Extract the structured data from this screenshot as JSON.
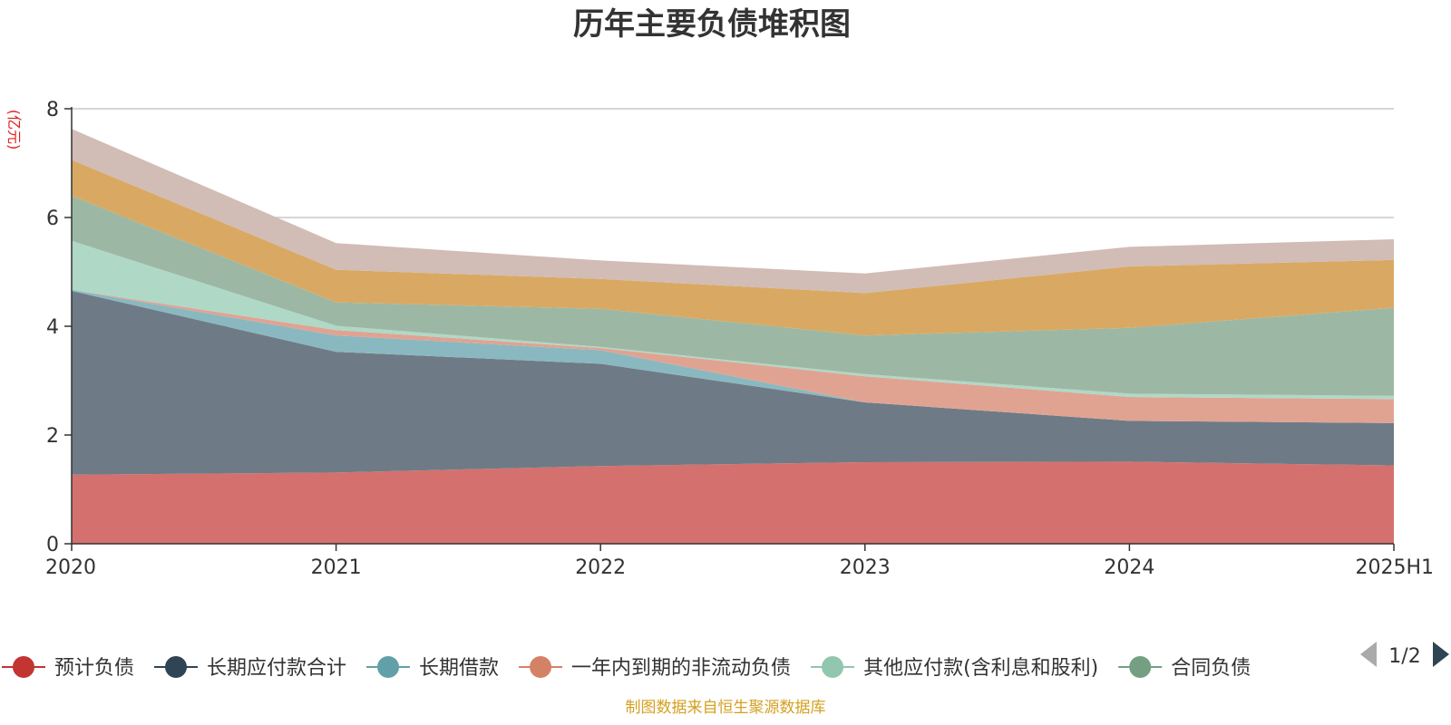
{
  "chart_data": {
    "type": "area",
    "title": "历年主要负债堆积图",
    "ylabel": "(亿元)",
    "ylim": [
      0,
      8
    ],
    "yticks": [
      0,
      2,
      4,
      6,
      8
    ],
    "categories": [
      "2020",
      "2021",
      "2022",
      "2023",
      "2024",
      "2025H1"
    ],
    "grid": true,
    "legend_position": "bottom",
    "series": [
      {
        "name": "预计负债",
        "color": "#d4716e",
        "values": [
          1.27,
          1.31,
          1.43,
          1.5,
          1.51,
          1.44
        ]
      },
      {
        "name": "长期应付款合计",
        "color": "#6e7b86",
        "values": [
          3.38,
          2.22,
          1.88,
          1.1,
          0.75,
          0.78
        ]
      },
      {
        "name": "长期借款",
        "color": "#8ab8c0",
        "values": [
          0.02,
          0.3,
          0.25,
          0.0,
          0.0,
          0.0
        ]
      },
      {
        "name": "一年内到期的非流动负债",
        "color": "#e0a392",
        "values": [
          0.0,
          0.1,
          0.04,
          0.48,
          0.44,
          0.44
        ]
      },
      {
        "name": "其他应付款(含利息和股利)",
        "color": "#b0d8c6",
        "values": [
          0.9,
          0.08,
          0.02,
          0.04,
          0.06,
          0.06
        ]
      },
      {
        "name": "合同负债",
        "color": "#9cb8a4",
        "values": [
          0.83,
          0.43,
          0.7,
          0.71,
          1.21,
          1.62
        ]
      },
      {
        "name": "",
        "color": "#d9a963",
        "values": [
          0.66,
          0.6,
          0.55,
          0.78,
          1.13,
          0.88
        ]
      },
      {
        "name": "",
        "color": "#d1bcb6",
        "values": [
          0.57,
          0.49,
          0.34,
          0.36,
          0.36,
          0.38
        ]
      }
    ]
  },
  "legend": {
    "items": [
      {
        "label": "预计负债",
        "color": "#c23531"
      },
      {
        "label": "长期应付款合计",
        "color": "#2f4554"
      },
      {
        "label": "长期借款",
        "color": "#61a0a8"
      },
      {
        "label": "一年内到期的非流动负债",
        "color": "#d48265"
      },
      {
        "label": "其他应付款(含利息和股利)",
        "color": "#91c7ae"
      },
      {
        "label": "合同负债",
        "color": "#749f83"
      }
    ],
    "page_indicator": "1/2"
  },
  "source": "制图数据来自恒生聚源数据库"
}
